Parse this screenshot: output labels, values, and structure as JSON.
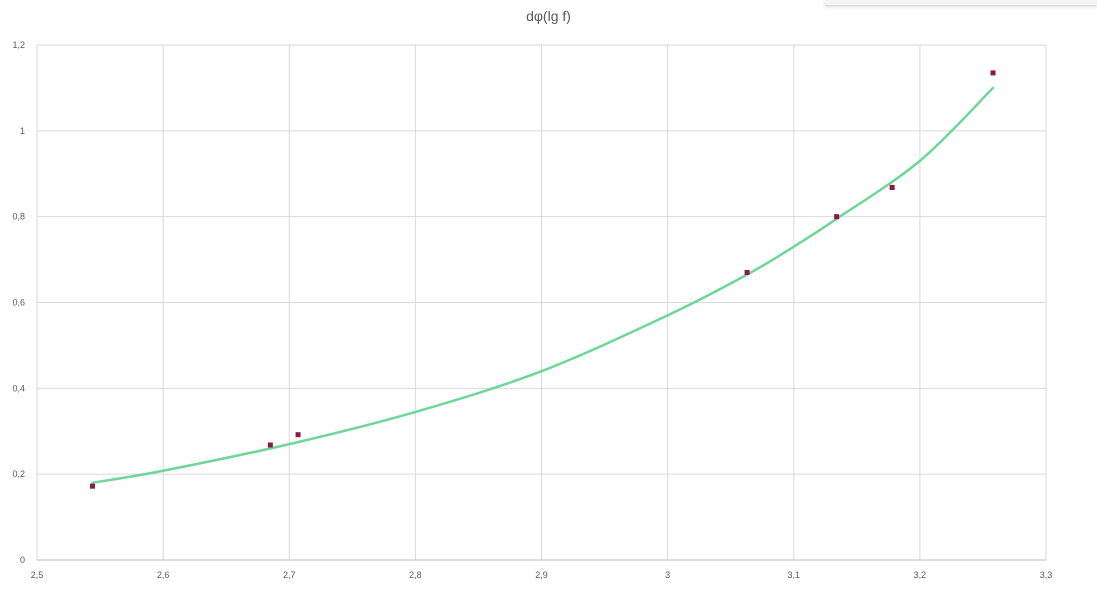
{
  "chart_data": {
    "type": "scatter",
    "title": "dφ(lg f)",
    "xlabel": "",
    "ylabel": "",
    "xlim": [
      2.5,
      3.3
    ],
    "ylim": [
      0,
      1.2
    ],
    "grid": true,
    "x_ticks": [
      "2,5",
      "2,6",
      "2,7",
      "2,8",
      "2,9",
      "3",
      "3,1",
      "3,2",
      "3,3"
    ],
    "y_ticks": [
      "0",
      "0,2",
      "0,4",
      "0,6",
      "0,8",
      "1",
      "1,2"
    ],
    "series": [
      {
        "kind": "points",
        "color": "#8b1a4a",
        "x": [
          2.544,
          2.685,
          2.707,
          3.063,
          3.134,
          3.178,
          3.258
        ],
        "y": [
          0.172,
          0.268,
          0.292,
          0.67,
          0.8,
          0.868,
          1.135
        ]
      },
      {
        "kind": "trendline",
        "color": "#6fd69a",
        "x": [
          2.544,
          2.6,
          2.7,
          2.8,
          2.9,
          3.0,
          3.063,
          3.1,
          3.134,
          3.2,
          3.258
        ],
        "y": [
          0.18,
          0.208,
          0.27,
          0.345,
          0.44,
          0.57,
          0.665,
          0.73,
          0.795,
          0.93,
          1.1
        ]
      }
    ]
  }
}
